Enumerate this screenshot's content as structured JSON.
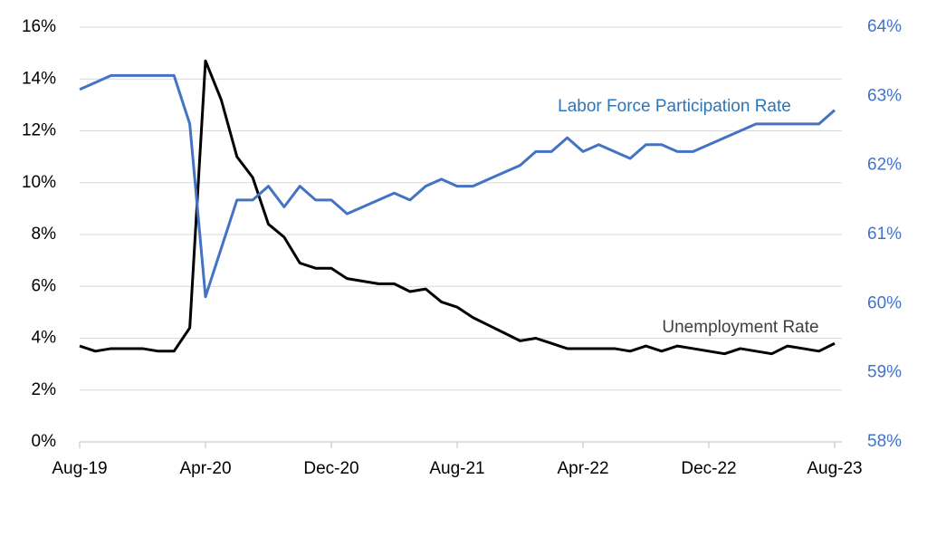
{
  "chart_data": {
    "type": "line",
    "categories": [
      "Aug-19",
      null,
      null,
      null,
      null,
      null,
      null,
      null,
      "Apr-20",
      null,
      null,
      null,
      null,
      null,
      null,
      null,
      "Dec-20",
      null,
      null,
      null,
      null,
      null,
      null,
      null,
      "Aug-21",
      null,
      null,
      null,
      null,
      null,
      null,
      null,
      "Apr-22",
      null,
      null,
      null,
      null,
      null,
      null,
      null,
      "Dec-22",
      null,
      null,
      null,
      null,
      null,
      null,
      null,
      "Aug-23"
    ],
    "series": [
      {
        "name": "Unemployment Rate",
        "color": "#000000",
        "values": [
          3.7,
          3.5,
          3.6,
          3.6,
          3.6,
          3.5,
          3.5,
          4.4,
          14.7,
          13.2,
          11.0,
          10.2,
          8.4,
          7.9,
          6.9,
          6.7,
          6.7,
          6.3,
          6.2,
          6.1,
          6.1,
          5.8,
          5.9,
          5.4,
          5.2,
          4.8,
          4.5,
          4.2,
          3.9,
          4.0,
          3.8,
          3.6,
          3.6,
          3.6,
          3.6,
          3.5,
          3.7,
          3.5,
          3.7,
          3.6,
          3.5,
          3.4,
          3.6,
          3.5,
          3.4,
          3.7,
          3.6,
          3.5,
          3.8
        ]
      },
      {
        "name": "Labor Force Participation Rate",
        "color": "#4472c4",
        "axis": "y2",
        "values": [
          63.1,
          63.2,
          63.3,
          63.3,
          63.3,
          63.3,
          63.3,
          62.6,
          60.1,
          60.8,
          61.5,
          61.5,
          61.7,
          61.4,
          61.7,
          61.5,
          61.5,
          61.3,
          61.4,
          61.5,
          61.6,
          61.5,
          61.7,
          61.8,
          61.7,
          61.7,
          61.8,
          61.9,
          62.0,
          62.2,
          62.2,
          62.4,
          62.2,
          62.3,
          62.2,
          62.1,
          62.3,
          62.3,
          62.2,
          62.2,
          62.3,
          62.4,
          62.5,
          62.6,
          62.6,
          62.6,
          62.6,
          62.6,
          62.8
        ]
      }
    ],
    "ylim": [
      0,
      16
    ],
    "yticks": [
      {
        "value": 0,
        "label": "0%"
      },
      {
        "value": 2,
        "label": "2%"
      },
      {
        "value": 4,
        "label": "4%"
      },
      {
        "value": 6,
        "label": "6%"
      },
      {
        "value": 8,
        "label": "8%"
      },
      {
        "value": 10,
        "label": "10%"
      },
      {
        "value": 12,
        "label": "12%"
      },
      {
        "value": 14,
        "label": "14%"
      },
      {
        "value": 16,
        "label": "16%"
      }
    ],
    "y2lim": [
      58,
      64
    ],
    "y2ticks": [
      {
        "value": 58,
        "label": "58%"
      },
      {
        "value": 59,
        "label": "59%"
      },
      {
        "value": 60,
        "label": "60%"
      },
      {
        "value": 61,
        "label": "61%"
      },
      {
        "value": 62,
        "label": "62%"
      },
      {
        "value": 63,
        "label": "63%"
      },
      {
        "value": 64,
        "label": "64%"
      }
    ],
    "grid": true
  }
}
